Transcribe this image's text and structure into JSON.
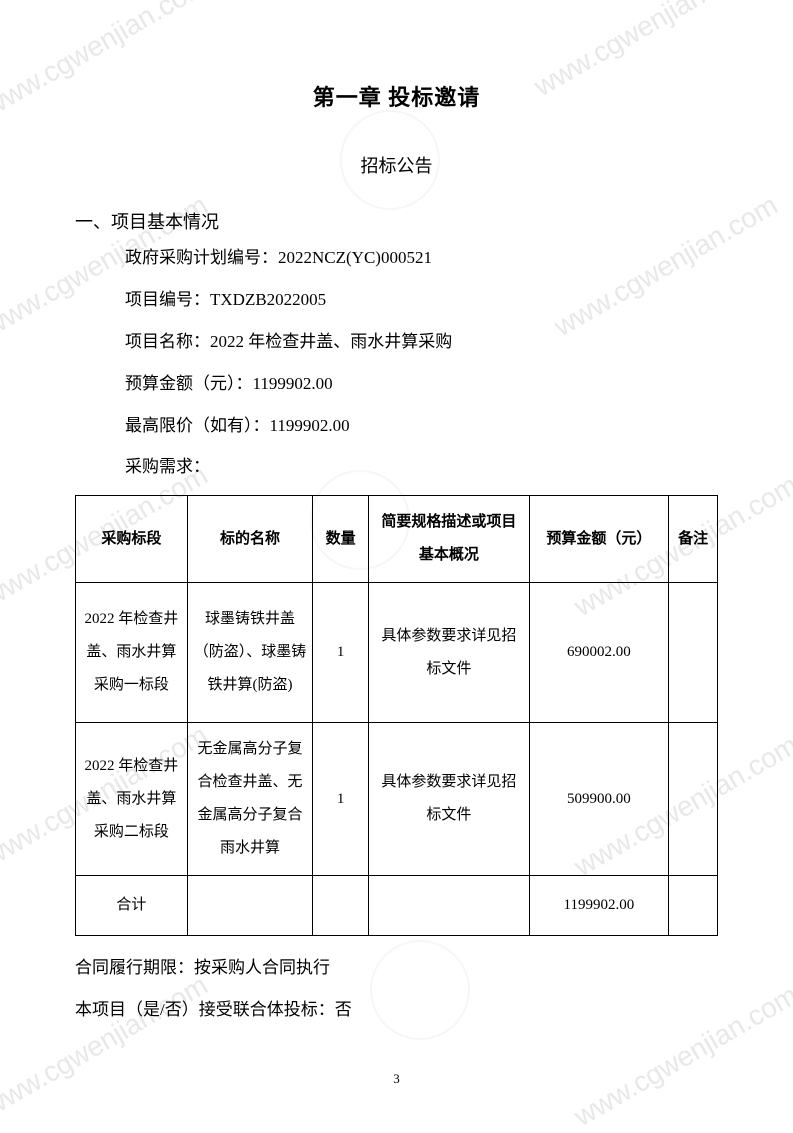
{
  "watermark_text": "www.cgwenjian.com",
  "chapter_title": "第一章 投标邀请",
  "subtitle": "招标公告",
  "section_heading": "一、项目基本情况",
  "plan_number": "政府采购计划编号：2022NCZ(YC)000521",
  "project_number": "项目编号：TXDZB2022005",
  "project_name": "项目名称：2022 年检查井盖、雨水井算采购",
  "budget_amount": "预算金额（元）：1199902.00",
  "max_price": "最高限价（如有）：1199902.00",
  "purchase_req": "采购需求：",
  "table": {
    "headers": {
      "section": "采购标段",
      "name": "标的名称",
      "qty": "数量",
      "desc": "简要规格描述或项目基本概况",
      "budget": "预算金额（元）",
      "note": "备注"
    },
    "rows": [
      {
        "section": "2022 年检查井盖、雨水井算采购一标段",
        "name": "球墨铸铁井盖（防盗）、球墨铸铁井算(防盗)",
        "qty": "1",
        "desc": "具体参数要求详见招标文件",
        "budget": "690002.00",
        "note": ""
      },
      {
        "section": "2022 年检查井盖、雨水井算采购二标段",
        "name": "无金属高分子复合检查井盖、无金属高分子复合雨水井算",
        "qty": "1",
        "desc": "具体参数要求详见招标文件",
        "budget": "509900.00",
        "note": ""
      }
    ],
    "total": {
      "label": "合计",
      "budget": "1199902.00"
    }
  },
  "contract_period": "合同履行期限：按采购人合同执行",
  "consortium": "本项目（是/否）接受联合体投标：否",
  "page_number": "3"
}
